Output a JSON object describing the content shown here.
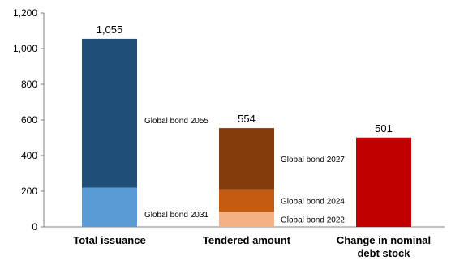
{
  "chart_data": {
    "type": "bar",
    "stacked": true,
    "categories": [
      "Total issuance",
      "Tendered amount",
      "Change in nominal debt stock"
    ],
    "category_lines": [
      [
        "Total issuance"
      ],
      [
        "Tendered amount"
      ],
      [
        "Change in nominal",
        "debt stock"
      ]
    ],
    "bars": [
      {
        "category": "Total issuance",
        "total_label": "1,055",
        "segments": [
          {
            "name": "Global bond 2031",
            "value": 220,
            "color": "#5b9bd5"
          },
          {
            "name": "Global bond 2055",
            "value": 835,
            "color": "#1f4e79"
          }
        ]
      },
      {
        "category": "Tendered amount",
        "total_label": "554",
        "segments": [
          {
            "name": "Global bond 2022",
            "value": 85,
            "color": "#f4b183"
          },
          {
            "name": "Global bond 2024",
            "value": 125,
            "color": "#c55a11"
          },
          {
            "name": "Global bond 2027",
            "value": 344,
            "color": "#843c0c"
          }
        ]
      },
      {
        "category": "Change in nominal debt stock",
        "total_label": "501",
        "segments": [
          {
            "value": 501,
            "color": "#c00000"
          }
        ]
      }
    ],
    "yticks": [
      "0",
      "200",
      "400",
      "600",
      "800",
      "1,000",
      "1,200"
    ],
    "ylim": [
      0,
      1200
    ],
    "grid": false,
    "legend": "none"
  }
}
